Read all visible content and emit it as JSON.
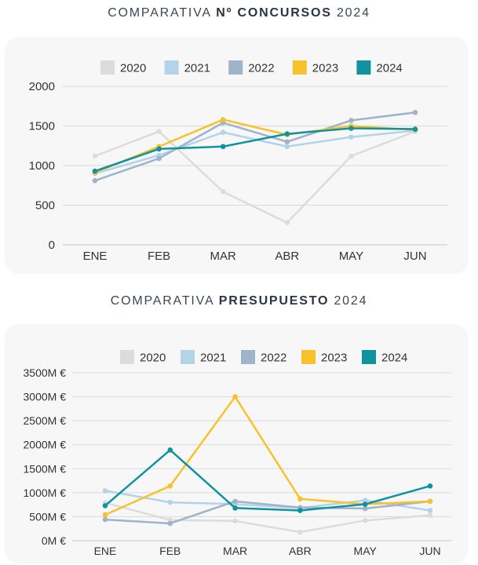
{
  "chart_data": [
    {
      "type": "line",
      "title_prefix": "COMPARATIVA",
      "title_bold": "Nº CONCURSOS",
      "title_suffix": "2024",
      "categories": [
        "ENE",
        "FEB",
        "MAR",
        "ABR",
        "MAY",
        "JUN"
      ],
      "ylim": [
        0,
        2000
      ],
      "yticks": [
        0,
        500,
        1000,
        1500,
        2000
      ],
      "ytick_labels": [
        "0",
        "500",
        "1000",
        "1500",
        "2000"
      ],
      "legend_position": "top-center",
      "grid": true,
      "series": [
        {
          "name": "2020",
          "color": "#dcdcdc",
          "values": [
            1120,
            1430,
            670,
            280,
            1120,
            1430
          ]
        },
        {
          "name": "2021",
          "color": "#b3d3e8",
          "values": [
            900,
            1130,
            1420,
            1240,
            1360,
            1440
          ]
        },
        {
          "name": "2022",
          "color": "#9fb3cb",
          "values": [
            810,
            1090,
            1540,
            1300,
            1570,
            1670
          ]
        },
        {
          "name": "2023",
          "color": "#f7c22c",
          "values": [
            910,
            1240,
            1580,
            1390,
            1500,
            1450
          ]
        },
        {
          "name": "2024",
          "color": "#10939f",
          "values": [
            930,
            1210,
            1240,
            1400,
            1470,
            1460
          ]
        }
      ]
    },
    {
      "type": "line",
      "title_prefix": "COMPARATIVA",
      "title_bold": "PRESUPUESTO",
      "title_suffix": "2024",
      "categories": [
        "ENE",
        "FEB",
        "MAR",
        "ABR",
        "MAY",
        "JUN"
      ],
      "ylim": [
        0,
        3500
      ],
      "yticks": [
        0,
        500,
        1000,
        1500,
        2000,
        2500,
        3000,
        3500
      ],
      "ytick_labels": [
        "0M €",
        "500M €",
        "1000M €",
        "1500M €",
        "2000M €",
        "2500M €",
        "3000M €",
        "3500M €"
      ],
      "legend_position": "top-center",
      "grid": true,
      "series": [
        {
          "name": "2020",
          "color": "#dcdcdc",
          "values": [
            790,
            430,
            410,
            180,
            420,
            530
          ]
        },
        {
          "name": "2021",
          "color": "#b3d3e8",
          "values": [
            1040,
            800,
            760,
            680,
            840,
            630
          ]
        },
        {
          "name": "2022",
          "color": "#9fb3cb",
          "values": [
            440,
            360,
            820,
            690,
            670,
            820
          ]
        },
        {
          "name": "2023",
          "color": "#f7c22c",
          "values": [
            540,
            1140,
            3000,
            870,
            760,
            820
          ]
        },
        {
          "name": "2024",
          "color": "#10939f",
          "values": [
            730,
            1890,
            680,
            630,
            760,
            1140
          ]
        }
      ]
    }
  ]
}
